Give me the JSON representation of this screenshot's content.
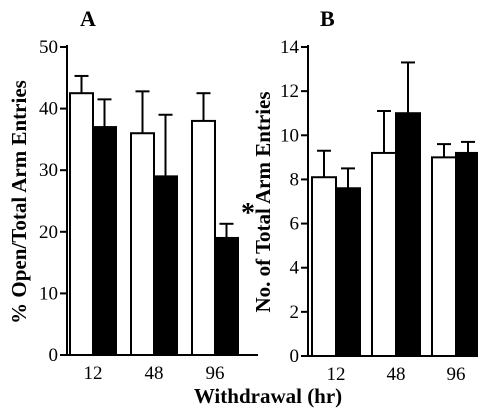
{
  "chart_data": [
    {
      "type": "bar",
      "panel_label": "A",
      "ylabel": "% Open/Total Arm Entries",
      "ylim": [
        0,
        50
      ],
      "yticks": [
        "0",
        "10",
        "20",
        "30",
        "40",
        "50"
      ],
      "categories": [
        "12",
        "48",
        "96"
      ],
      "series": [
        {
          "fill": "white",
          "values": [
            42.5,
            36.0,
            38.0
          ],
          "errors": [
            2.8,
            6.8,
            4.5
          ]
        },
        {
          "fill": "black",
          "values": [
            37.0,
            29.0,
            19.0
          ],
          "errors": [
            4.5,
            10.0,
            2.3
          ]
        }
      ],
      "annotations": [
        {
          "text": "*",
          "category": "96",
          "series": 1
        }
      ]
    },
    {
      "type": "bar",
      "panel_label": "B",
      "ylabel": "No. of Total Arm Entries",
      "ylim": [
        0,
        14
      ],
      "yticks": [
        "0",
        "2",
        "4",
        "6",
        "8",
        "10",
        "12",
        "14"
      ],
      "categories": [
        "12",
        "48",
        "96"
      ],
      "series": [
        {
          "fill": "white",
          "values": [
            8.1,
            9.2,
            9.0
          ],
          "errors": [
            1.2,
            1.9,
            0.6
          ]
        },
        {
          "fill": "black",
          "values": [
            7.6,
            11.0,
            9.2
          ],
          "errors": [
            0.9,
            2.3,
            0.5
          ]
        }
      ]
    }
  ],
  "shared_xlabel": "Withdrawal (hr)"
}
